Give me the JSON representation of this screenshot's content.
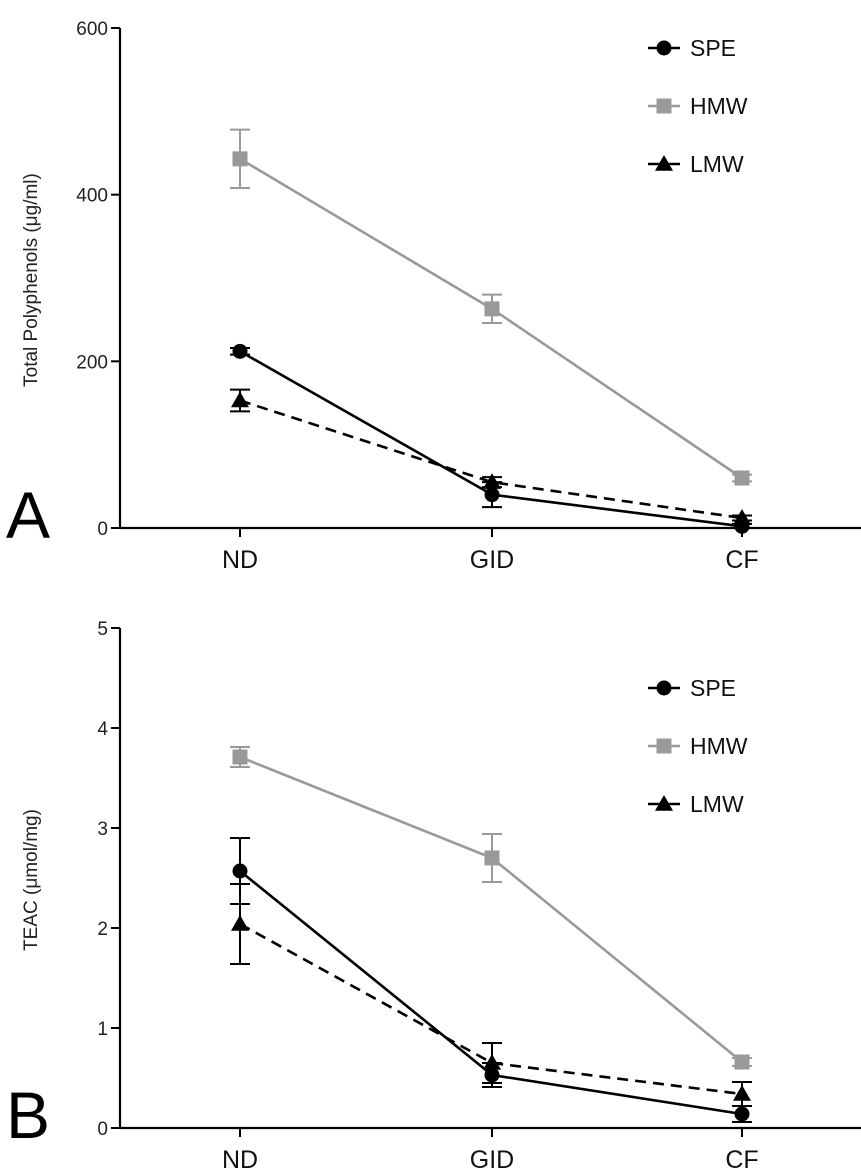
{
  "chart_data": [
    {
      "type": "line",
      "panel_label": "A",
      "title": "",
      "xlabel": "",
      "ylabel": "Total Polyphenols (μg/ml)",
      "categories": [
        "ND",
        "GID",
        "CF"
      ],
      "ylim": [
        0,
        600
      ],
      "yticks": [
        "0",
        "200",
        "400",
        "600"
      ],
      "legend_position": "top-right",
      "series": [
        {
          "name": "SPE",
          "color": "#000000",
          "marker": "circle",
          "dash": "solid",
          "values": [
            212,
            40,
            2
          ],
          "errors": [
            4,
            15,
            3
          ]
        },
        {
          "name": "HMW",
          "color": "#999999",
          "marker": "square",
          "dash": "solid",
          "values": [
            443,
            263,
            60
          ],
          "errors": [
            35,
            17,
            4
          ]
        },
        {
          "name": "LMW",
          "color": "#000000",
          "marker": "triangle",
          "dash": "dashed",
          "values": [
            153,
            55,
            12
          ],
          "errors": [
            13,
            6,
            3
          ]
        }
      ]
    },
    {
      "type": "line",
      "panel_label": "B",
      "title": "",
      "xlabel": "",
      "ylabel": "TEAC (μmol/mg)",
      "categories": [
        "ND",
        "GID",
        "CF"
      ],
      "ylim": [
        0,
        5
      ],
      "yticks": [
        "0",
        "1",
        "2",
        "3",
        "4",
        "5"
      ],
      "legend_position": "top-right",
      "series": [
        {
          "name": "SPE",
          "color": "#000000",
          "marker": "circle",
          "dash": "solid",
          "values": [
            2.57,
            0.53,
            0.14
          ],
          "errors": [
            0.33,
            0.12,
            0.08
          ]
        },
        {
          "name": "HMW",
          "color": "#999999",
          "marker": "square",
          "dash": "solid",
          "values": [
            3.71,
            2.7,
            0.66
          ],
          "errors": [
            0.1,
            0.24,
            0.04
          ]
        },
        {
          "name": "LMW",
          "color": "#000000",
          "marker": "triangle",
          "dash": "dashed",
          "values": [
            2.04,
            0.65,
            0.34
          ],
          "errors": [
            0.4,
            0.2,
            0.12
          ]
        }
      ]
    }
  ]
}
